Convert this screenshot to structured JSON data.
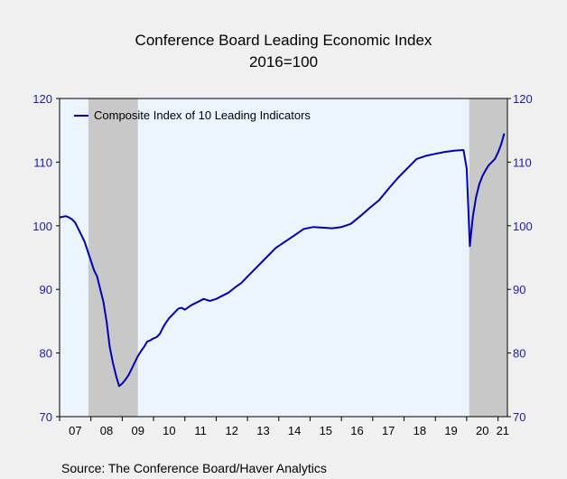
{
  "chart_data": {
    "type": "line",
    "title": "Conference Board Leading Economic Index",
    "subtitle": "2016=100",
    "source": "Source:  The Conference Board/Haver Analytics",
    "legend": {
      "placement": "top-left",
      "label": "Composite Index of 10 Leading Indicators"
    },
    "ylim": [
      70,
      120
    ],
    "yticks": [
      70,
      80,
      90,
      100,
      110,
      120
    ],
    "xlim": [
      2007.0,
      2021.3
    ],
    "xticks": [
      "07",
      "08",
      "09",
      "10",
      "11",
      "12",
      "13",
      "14",
      "15",
      "16",
      "17",
      "18",
      "19",
      "20",
      "21"
    ],
    "recessions": [
      [
        2007.92,
        2009.5
      ],
      [
        2020.08,
        2021.3
      ]
    ],
    "colors": {
      "line": "#0000b4",
      "recession": "#c8c8c8",
      "plot_bg": "#ecf4fd",
      "axis_text": "#1a1ab4"
    },
    "series": [
      {
        "name": "Composite Index of 10 Leading Indicators",
        "x": [
          2007.0,
          2007.1,
          2007.2,
          2007.3,
          2007.4,
          2007.5,
          2007.6,
          2007.7,
          2007.8,
          2007.9,
          2008.0,
          2008.1,
          2008.2,
          2008.3,
          2008.4,
          2008.5,
          2008.6,
          2008.7,
          2008.8,
          2008.9,
          2009.0,
          2009.1,
          2009.2,
          2009.3,
          2009.4,
          2009.5,
          2009.6,
          2009.7,
          2009.8,
          2009.9,
          2010.0,
          2010.1,
          2010.2,
          2010.3,
          2010.4,
          2010.5,
          2010.6,
          2010.7,
          2010.8,
          2010.9,
          2011.0,
          2011.2,
          2011.4,
          2011.6,
          2011.8,
          2012.0,
          2012.2,
          2012.4,
          2012.6,
          2012.8,
          2013.0,
          2013.3,
          2013.6,
          2013.9,
          2014.2,
          2014.5,
          2014.8,
          2015.1,
          2015.4,
          2015.7,
          2016.0,
          2016.3,
          2016.6,
          2016.9,
          2017.2,
          2017.5,
          2017.8,
          2018.1,
          2018.4,
          2018.7,
          2019.0,
          2019.3,
          2019.6,
          2019.9,
          2020.0,
          2020.1,
          2020.2,
          2020.3,
          2020.4,
          2020.5,
          2020.6,
          2020.7,
          2020.8,
          2020.9,
          2021.0,
          2021.1,
          2021.2
        ],
        "y": [
          101.3,
          101.4,
          101.5,
          101.3,
          101.0,
          100.5,
          99.5,
          98.5,
          97.5,
          96.0,
          94.5,
          93.0,
          92.0,
          90.0,
          88.0,
          85.0,
          81.0,
          78.5,
          76.5,
          74.8,
          75.2,
          75.8,
          76.5,
          77.5,
          78.5,
          79.5,
          80.3,
          81.0,
          81.8,
          82.0,
          82.3,
          82.5,
          83.0,
          84.0,
          84.8,
          85.5,
          86.0,
          86.5,
          87.0,
          87.1,
          86.8,
          87.5,
          88.0,
          88.5,
          88.2,
          88.5,
          89.0,
          89.5,
          90.3,
          91.0,
          92.0,
          93.5,
          95.0,
          96.5,
          97.5,
          98.5,
          99.5,
          99.8,
          99.7,
          99.6,
          99.8,
          100.3,
          101.5,
          102.8,
          104.0,
          105.8,
          107.5,
          109.0,
          110.5,
          111.0,
          111.3,
          111.6,
          111.8,
          111.9,
          109.0,
          96.8,
          101.5,
          104.5,
          106.5,
          107.8,
          108.7,
          109.5,
          110.0,
          110.5,
          111.5,
          112.8,
          114.5
        ]
      }
    ]
  }
}
